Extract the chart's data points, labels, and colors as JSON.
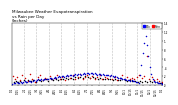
{
  "title": "Milwaukee Weather Evapotranspiration\nvs Rain per Day\n(Inches)",
  "title_fontsize": 3.0,
  "background_color": "#ffffff",
  "legend_labels": [
    "ETo",
    "Rain"
  ],
  "legend_colors": [
    "#0000ff",
    "#ff0000"
  ],
  "ylim": [
    0,
    1.4
  ],
  "xlim": [
    0,
    365
  ],
  "tick_fontsize": 2.0,
  "grid_color": "#888888",
  "eto_color": "#0000cc",
  "rain_color": "#cc0000",
  "black_color": "#000000",
  "marker_size": 1.2,
  "vline_positions": [
    30,
    60,
    91,
    121,
    152,
    182,
    213,
    244,
    274,
    305,
    335
  ],
  "xtick_positions": [
    1,
    15,
    32,
    46,
    60,
    74,
    91,
    105,
    121,
    135,
    152,
    166,
    182,
    196,
    213,
    227,
    244,
    258,
    274,
    288,
    305,
    319,
    335,
    349,
    365
  ],
  "xtick_labels": [
    "1/1",
    "1/15",
    "2/1",
    "2/15",
    "3/1",
    "3/15",
    "4/1",
    "4/15",
    "5/1",
    "5/15",
    "6/1",
    "6/15",
    "7/1",
    "7/15",
    "8/1",
    "8/15",
    "9/1",
    "9/15",
    "10/1",
    "10/15",
    "11/1",
    "11/15",
    "12/1",
    "12/15",
    "1/1"
  ],
  "ytick_positions": [
    0.0,
    0.2,
    0.4,
    0.6,
    0.8,
    1.0,
    1.2,
    1.4
  ],
  "ytick_labels": [
    ".0",
    ".2",
    ".4",
    ".6",
    ".8",
    "1.",
    "1.2",
    "1.4"
  ],
  "eto_data": [
    [
      1,
      0.03
    ],
    [
      5,
      0.04
    ],
    [
      8,
      0.05
    ],
    [
      12,
      0.07
    ],
    [
      15,
      0.05
    ],
    [
      18,
      0.06
    ],
    [
      22,
      0.07
    ],
    [
      25,
      0.06
    ],
    [
      28,
      0.08
    ],
    [
      32,
      0.09
    ],
    [
      35,
      0.08
    ],
    [
      38,
      0.07
    ],
    [
      42,
      0.09
    ],
    [
      45,
      0.1
    ],
    [
      48,
      0.08
    ],
    [
      52,
      0.1
    ],
    [
      55,
      0.11
    ],
    [
      58,
      0.09
    ],
    [
      62,
      0.12
    ],
    [
      65,
      0.13
    ],
    [
      68,
      0.11
    ],
    [
      72,
      0.14
    ],
    [
      75,
      0.12
    ],
    [
      78,
      0.13
    ],
    [
      82,
      0.14
    ],
    [
      85,
      0.15
    ],
    [
      88,
      0.13
    ],
    [
      92,
      0.16
    ],
    [
      95,
      0.17
    ],
    [
      98,
      0.15
    ],
    [
      102,
      0.17
    ],
    [
      105,
      0.18
    ],
    [
      108,
      0.16
    ],
    [
      112,
      0.19
    ],
    [
      115,
      0.2
    ],
    [
      118,
      0.18
    ],
    [
      122,
      0.2
    ],
    [
      125,
      0.21
    ],
    [
      128,
      0.19
    ],
    [
      132,
      0.21
    ],
    [
      135,
      0.22
    ],
    [
      138,
      0.2
    ],
    [
      142,
      0.22
    ],
    [
      145,
      0.23
    ],
    [
      148,
      0.21
    ],
    [
      152,
      0.23
    ],
    [
      155,
      0.25
    ],
    [
      158,
      0.22
    ],
    [
      162,
      0.25
    ],
    [
      165,
      0.26
    ],
    [
      168,
      0.24
    ],
    [
      172,
      0.26
    ],
    [
      175,
      0.27
    ],
    [
      178,
      0.25
    ],
    [
      182,
      0.27
    ],
    [
      185,
      0.28
    ],
    [
      188,
      0.25
    ],
    [
      192,
      0.27
    ],
    [
      195,
      0.28
    ],
    [
      198,
      0.25
    ],
    [
      202,
      0.27
    ],
    [
      205,
      0.26
    ],
    [
      208,
      0.24
    ],
    [
      212,
      0.26
    ],
    [
      215,
      0.25
    ],
    [
      218,
      0.23
    ],
    [
      222,
      0.25
    ],
    [
      225,
      0.24
    ],
    [
      228,
      0.22
    ],
    [
      232,
      0.23
    ],
    [
      235,
      0.22
    ],
    [
      238,
      0.2
    ],
    [
      242,
      0.22
    ],
    [
      245,
      0.21
    ],
    [
      248,
      0.19
    ],
    [
      252,
      0.2
    ],
    [
      255,
      0.19
    ],
    [
      258,
      0.17
    ],
    [
      262,
      0.17
    ],
    [
      265,
      0.16
    ],
    [
      268,
      0.14
    ],
    [
      272,
      0.15
    ],
    [
      275,
      0.14
    ],
    [
      278,
      0.12
    ],
    [
      282,
      0.12
    ],
    [
      285,
      0.11
    ],
    [
      288,
      0.1
    ],
    [
      292,
      0.11
    ],
    [
      295,
      0.1
    ],
    [
      298,
      0.09
    ],
    [
      302,
      0.08
    ],
    [
      305,
      0.07
    ],
    [
      308,
      0.06
    ],
    [
      312,
      0.22
    ],
    [
      315,
      0.45
    ],
    [
      318,
      0.72
    ],
    [
      322,
      0.95
    ],
    [
      325,
      1.1
    ],
    [
      328,
      0.9
    ],
    [
      332,
      0.65
    ],
    [
      335,
      0.42
    ],
    [
      338,
      0.25
    ],
    [
      342,
      0.15
    ],
    [
      345,
      0.1
    ],
    [
      348,
      0.08
    ],
    [
      352,
      0.07
    ],
    [
      355,
      0.06
    ],
    [
      358,
      0.05
    ],
    [
      362,
      0.04
    ],
    [
      365,
      0.03
    ]
  ],
  "rain_data": [
    [
      3,
      0.2
    ],
    [
      9,
      0.15
    ],
    [
      14,
      0.18
    ],
    [
      20,
      0.12
    ],
    [
      26,
      0.22
    ],
    [
      33,
      0.16
    ],
    [
      39,
      0.1
    ],
    [
      44,
      0.25
    ],
    [
      50,
      0.14
    ],
    [
      56,
      0.08
    ],
    [
      63,
      0.19
    ],
    [
      69,
      0.22
    ],
    [
      75,
      0.11
    ],
    [
      81,
      0.17
    ],
    [
      87,
      0.14
    ],
    [
      93,
      0.2
    ],
    [
      99,
      0.13
    ],
    [
      106,
      0.17
    ],
    [
      111,
      0.22
    ],
    [
      117,
      0.15
    ],
    [
      123,
      0.18
    ],
    [
      129,
      0.12
    ],
    [
      136,
      0.2
    ],
    [
      142,
      0.16
    ],
    [
      148,
      0.22
    ],
    [
      154,
      0.15
    ],
    [
      160,
      0.18
    ],
    [
      166,
      0.25
    ],
    [
      172,
      0.14
    ],
    [
      178,
      0.19
    ],
    [
      184,
      0.22
    ],
    [
      190,
      0.16
    ],
    [
      196,
      0.2
    ],
    [
      202,
      0.14
    ],
    [
      208,
      0.18
    ],
    [
      214,
      0.22
    ],
    [
      220,
      0.15
    ],
    [
      226,
      0.19
    ],
    [
      232,
      0.16
    ],
    [
      238,
      0.2
    ],
    [
      244,
      0.14
    ],
    [
      250,
      0.18
    ],
    [
      256,
      0.12
    ],
    [
      262,
      0.16
    ],
    [
      268,
      0.22
    ],
    [
      274,
      0.15
    ],
    [
      280,
      0.19
    ],
    [
      286,
      0.13
    ],
    [
      292,
      0.17
    ],
    [
      298,
      0.14
    ],
    [
      304,
      0.18
    ],
    [
      310,
      0.22
    ],
    [
      316,
      0.16
    ],
    [
      322,
      0.2
    ],
    [
      328,
      0.65
    ],
    [
      334,
      0.14
    ],
    [
      340,
      0.18
    ],
    [
      346,
      0.12
    ],
    [
      352,
      0.15
    ],
    [
      358,
      0.1
    ],
    [
      364,
      0.08
    ]
  ],
  "black_data": [
    [
      6,
      0.08
    ],
    [
      11,
      0.1
    ],
    [
      16,
      0.07
    ],
    [
      21,
      0.09
    ],
    [
      30,
      0.11
    ],
    [
      36,
      0.08
    ],
    [
      41,
      0.12
    ],
    [
      47,
      0.09
    ],
    [
      53,
      0.11
    ],
    [
      59,
      0.08
    ],
    [
      66,
      0.12
    ],
    [
      71,
      0.09
    ],
    [
      77,
      0.11
    ],
    [
      83,
      0.14
    ],
    [
      89,
      0.1
    ],
    [
      96,
      0.13
    ],
    [
      101,
      0.11
    ],
    [
      107,
      0.14
    ],
    [
      113,
      0.12
    ],
    [
      119,
      0.15
    ],
    [
      125,
      0.13
    ],
    [
      131,
      0.16
    ],
    [
      137,
      0.14
    ],
    [
      143,
      0.17
    ],
    [
      149,
      0.15
    ],
    [
      155,
      0.18
    ],
    [
      161,
      0.16
    ],
    [
      167,
      0.19
    ],
    [
      173,
      0.17
    ],
    [
      179,
      0.2
    ],
    [
      185,
      0.18
    ],
    [
      191,
      0.16
    ],
    [
      197,
      0.18
    ],
    [
      203,
      0.16
    ],
    [
      209,
      0.14
    ],
    [
      215,
      0.16
    ],
    [
      221,
      0.14
    ],
    [
      227,
      0.13
    ],
    [
      233,
      0.15
    ],
    [
      239,
      0.13
    ],
    [
      245,
      0.12
    ],
    [
      251,
      0.14
    ],
    [
      257,
      0.12
    ],
    [
      263,
      0.11
    ],
    [
      269,
      0.13
    ],
    [
      275,
      0.11
    ],
    [
      281,
      0.1
    ],
    [
      287,
      0.12
    ],
    [
      293,
      0.1
    ],
    [
      299,
      0.09
    ],
    [
      306,
      0.08
    ],
    [
      311,
      0.1
    ],
    [
      317,
      0.08
    ],
    [
      323,
      0.1
    ],
    [
      329,
      0.08
    ],
    [
      336,
      0.09
    ],
    [
      341,
      0.07
    ],
    [
      347,
      0.08
    ],
    [
      353,
      0.07
    ],
    [
      359,
      0.06
    ],
    [
      365,
      0.05
    ]
  ]
}
